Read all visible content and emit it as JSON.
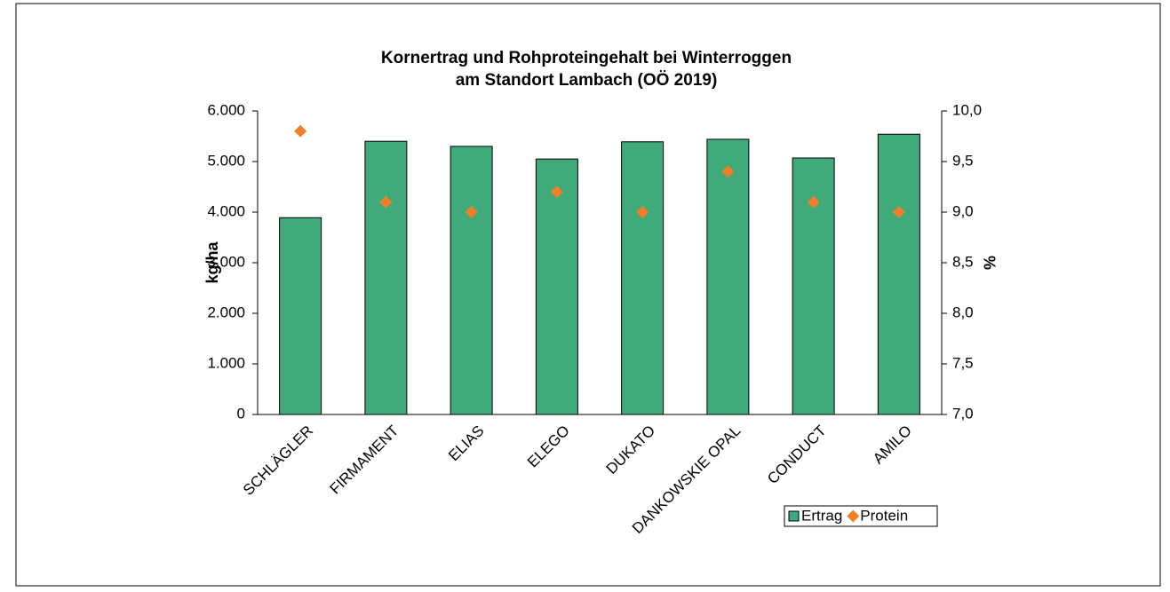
{
  "chart_data": {
    "type": "bar",
    "title": [
      "Kornertrag und Rohproteingehalt bei Winterroggen",
      "am Standort Lambach (OÖ 2019)"
    ],
    "categories": [
      "SCHLÄGLER",
      "FIRMAMENT",
      "ELIAS",
      "ELEGO",
      "DUKATO",
      "DANKOWSKIE OPAL",
      "CONDUCT",
      "AMILO"
    ],
    "series": [
      {
        "name": "Ertrag",
        "type": "bar",
        "color": "#40aa7a",
        "values": [
          3890,
          5400,
          5300,
          5050,
          5390,
          5440,
          5070,
          5540
        ]
      },
      {
        "name": "Protein",
        "type": "scatter",
        "axis": "y2",
        "color": "#f07f27",
        "values": [
          9.8,
          9.1,
          9.0,
          9.2,
          9.0,
          9.4,
          9.1,
          9.0
        ]
      }
    ],
    "ylabel": "kg/ha",
    "y2label": "%",
    "ylim": [
      0,
      6000
    ],
    "yticks": [
      0,
      {
        "value": 1000,
        "label": "1.000"
      },
      {
        "value": 2000,
        "label": "2.000"
      },
      {
        "value": 3000,
        "label": "3.000"
      },
      {
        "value": 4000,
        "label": "4.000"
      },
      {
        "value": 5000,
        "label": "5.000"
      },
      {
        "value": 6000,
        "label": "6.000"
      }
    ],
    "y2lim": [
      7,
      10
    ],
    "y2ticks": [
      {
        "value": 7,
        "label": "7,0"
      },
      {
        "value": 7.5,
        "label": "7,5"
      },
      {
        "value": 8,
        "label": "8,0"
      },
      {
        "value": 8.5,
        "label": "8,5"
      },
      {
        "value": 9,
        "label": "9,0"
      },
      {
        "value": 9.5,
        "label": "9,5"
      },
      {
        "value": 10,
        "label": "10,0"
      }
    ],
    "legend": "bottom-right",
    "grid": false
  }
}
